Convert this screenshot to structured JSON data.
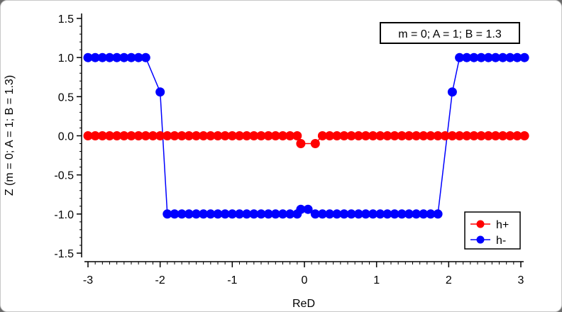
{
  "chart_data": {
    "type": "scatter",
    "xlabel": "ReD",
    "ylabel": "Z (m = 0; A = 1; B = 1.3)",
    "annotation": "m = 0; A = 1; B = 1.3",
    "xlim": [
      -3.1,
      3.0
    ],
    "ylim": [
      -1.6,
      1.55
    ],
    "x_ticks": [
      -3,
      -2,
      -1,
      0,
      1,
      2,
      3
    ],
    "x_tick_labels": [
      "-3",
      "-2",
      "-1",
      "0",
      "1",
      "2",
      "3"
    ],
    "y_ticks": [
      1.5,
      1.0,
      0.5,
      0.0,
      -0.5,
      -1.0,
      -1.5
    ],
    "y_tick_labels": [
      "1.5",
      "1.0",
      "0.5",
      "0.0",
      "-0.5",
      "-1.0",
      "-1.5"
    ],
    "grid": false,
    "legend_position": "bottom-right",
    "x": [
      -3.0,
      -2.9,
      -2.8,
      -2.7,
      -2.6,
      -2.5,
      -2.4,
      -2.3,
      -2.2,
      -2.1,
      -2.0,
      -1.9,
      -1.8,
      -1.7,
      -1.6,
      -1.5,
      -1.4,
      -1.3,
      -1.2,
      -1.1,
      -1.0,
      -0.9,
      -0.8,
      -0.7,
      -0.6,
      -0.5,
      -0.4,
      -0.3,
      -0.2,
      -0.1,
      0.0,
      0.1,
      0.2,
      0.3,
      0.4,
      0.5,
      0.6,
      0.7,
      0.8,
      0.9,
      1.0,
      1.1,
      1.2,
      1.3,
      1.4,
      1.5,
      1.6,
      1.7,
      1.8,
      1.9,
      2.0,
      2.1,
      2.2,
      2.3,
      2.4,
      2.5,
      2.6,
      2.7,
      2.8,
      2.9,
      3.0
    ],
    "series": [
      {
        "name": "h+",
        "color": "#ff0000",
        "values": [
          0,
          0,
          0,
          0,
          0,
          0,
          0,
          0,
          0,
          0,
          0,
          0,
          0,
          0,
          0,
          0,
          0,
          0,
          0,
          0,
          0,
          0,
          0,
          0,
          0,
          0,
          0,
          0,
          0,
          0,
          -0.1,
          -0.1,
          0,
          0,
          0,
          0,
          0,
          0,
          0,
          0,
          0,
          0,
          0,
          0,
          0,
          0,
          0,
          0,
          0,
          0,
          0,
          0,
          0,
          0,
          0,
          0,
          0,
          0,
          0,
          0,
          0
        ],
        "x_offset": [
          0,
          0,
          0,
          0,
          0,
          0,
          0,
          0,
          0,
          0,
          0,
          0,
          0,
          0,
          0,
          0,
          0,
          0,
          0,
          0,
          0,
          0,
          0,
          0,
          0,
          0,
          0,
          0,
          0,
          0,
          -0.05,
          0.05,
          0.05,
          0.05,
          0.05,
          0.05,
          0.05,
          0.05,
          0.05,
          0.05,
          0.05,
          0.05,
          0.05,
          0.05,
          0.05,
          0.05,
          0.05,
          0.05,
          0.05,
          0.05,
          0.05,
          0.05,
          0.05,
          0.05,
          0.05,
          0.05,
          0.05,
          0.05,
          0.05,
          0.05,
          0.05
        ]
      },
      {
        "name": "h-",
        "color": "#0000ff",
        "points": [
          [
            -3.0,
            1.0
          ],
          [
            -2.9,
            1.0
          ],
          [
            -2.8,
            1.0
          ],
          [
            -2.7,
            1.0
          ],
          [
            -2.6,
            1.0
          ],
          [
            -2.5,
            1.0
          ],
          [
            -2.4,
            1.0
          ],
          [
            -2.3,
            1.0
          ],
          [
            -2.2,
            1.0
          ],
          [
            -2.0,
            0.56
          ],
          [
            -1.9,
            -1.0
          ],
          [
            -1.8,
            -1.0
          ],
          [
            -1.7,
            -1.0
          ],
          [
            -1.6,
            -1.0
          ],
          [
            -1.5,
            -1.0
          ],
          [
            -1.4,
            -1.0
          ],
          [
            -1.3,
            -1.0
          ],
          [
            -1.2,
            -1.0
          ],
          [
            -1.1,
            -1.0
          ],
          [
            -1.0,
            -1.0
          ],
          [
            -0.9,
            -1.0
          ],
          [
            -0.8,
            -1.0
          ],
          [
            -0.7,
            -1.0
          ],
          [
            -0.6,
            -1.0
          ],
          [
            -0.5,
            -1.0
          ],
          [
            -0.4,
            -1.0
          ],
          [
            -0.3,
            -1.0
          ],
          [
            -0.2,
            -1.0
          ],
          [
            -0.1,
            -1.0
          ],
          [
            -0.05,
            -0.94
          ],
          [
            0.05,
            -0.94
          ],
          [
            0.15,
            -1.0
          ],
          [
            0.25,
            -1.0
          ],
          [
            0.35,
            -1.0
          ],
          [
            0.45,
            -1.0
          ],
          [
            0.55,
            -1.0
          ],
          [
            0.65,
            -1.0
          ],
          [
            0.75,
            -1.0
          ],
          [
            0.85,
            -1.0
          ],
          [
            0.95,
            -1.0
          ],
          [
            1.05,
            -1.0
          ],
          [
            1.15,
            -1.0
          ],
          [
            1.25,
            -1.0
          ],
          [
            1.35,
            -1.0
          ],
          [
            1.45,
            -1.0
          ],
          [
            1.55,
            -1.0
          ],
          [
            1.65,
            -1.0
          ],
          [
            1.75,
            -1.0
          ],
          [
            1.85,
            -1.0
          ],
          [
            2.05,
            0.56
          ],
          [
            2.15,
            1.0
          ],
          [
            2.25,
            1.0
          ],
          [
            2.35,
            1.0
          ],
          [
            2.45,
            1.0
          ],
          [
            2.55,
            1.0
          ],
          [
            2.65,
            1.0
          ],
          [
            2.75,
            1.0
          ],
          [
            2.85,
            1.0
          ],
          [
            2.95,
            1.0
          ],
          [
            3.05,
            1.0
          ]
        ]
      }
    ]
  }
}
